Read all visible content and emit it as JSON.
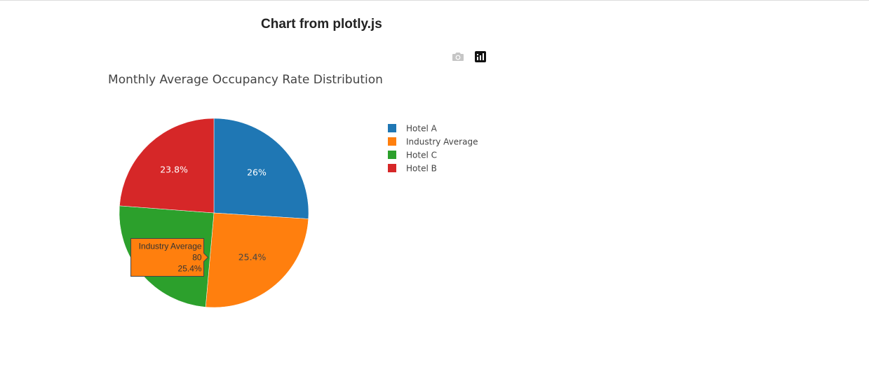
{
  "page": {
    "title": "Chart from plotly.js"
  },
  "modebar": {
    "buttons": [
      {
        "name": "download-plot-button",
        "icon": "camera-icon"
      },
      {
        "name": "plotly-logo-button",
        "icon": "plotly-logo-icon"
      }
    ]
  },
  "chart_data": {
    "type": "pie",
    "title": "Monthly Average Occupancy Rate Distribution",
    "labels": [
      "Hotel A",
      "Industry Average",
      "Hotel C",
      "Hotel B"
    ],
    "percent_labels": [
      "26%",
      "25.4%",
      "24.8%",
      "23.8%"
    ],
    "percents": [
      26,
      25.4,
      24.8,
      23.8
    ],
    "colors": [
      "#1f77b4",
      "#ff7f0e",
      "#2ca02c",
      "#d62728"
    ],
    "label_colors": [
      "#ffffff",
      "#444444",
      "#ffffff",
      "#ffffff"
    ],
    "legend_position": "right",
    "hover": {
      "label": "Industry Average",
      "value": "80",
      "percent": "25.4%",
      "slice_index": 1
    }
  }
}
